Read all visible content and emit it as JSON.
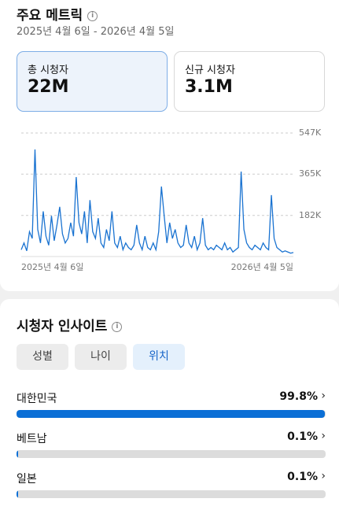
{
  "header": {
    "title": "주요 메트릭",
    "date_range": "2025년 4월 6일 - 2026년 4월 5일"
  },
  "metrics": [
    {
      "label": "총 시청자",
      "value": "22M"
    },
    {
      "label": "신규 시청자",
      "value": "3.1M"
    }
  ],
  "chart_data": {
    "type": "line",
    "categories": [
      "2025년 4월 6일",
      null,
      null,
      null,
      null,
      null,
      null,
      null,
      null,
      null,
      null,
      null,
      null,
      null,
      null,
      null,
      null,
      null,
      null,
      null,
      null,
      null,
      null,
      null,
      null,
      null,
      null,
      null,
      null,
      null,
      null,
      null,
      null,
      null,
      null,
      null,
      null,
      null,
      null,
      null,
      null,
      null,
      null,
      null,
      null,
      null,
      null,
      null,
      null,
      null,
      null,
      null,
      null,
      null,
      null,
      null,
      null,
      null,
      null,
      null,
      null,
      null,
      null,
      null,
      null,
      null,
      null,
      null,
      null,
      null,
      null,
      null,
      null,
      null,
      null,
      null,
      null,
      null,
      null,
      null,
      null,
      null,
      null,
      null,
      null,
      null,
      null,
      null,
      null,
      null,
      null,
      null,
      null,
      null,
      null,
      null,
      null,
      null,
      null,
      "2026년 4월 5일"
    ],
    "series": [
      {
        "color": "#1a73d1",
        "values": [
          30000,
          60000,
          25000,
          110000,
          80000,
          474000,
          120000,
          60000,
          200000,
          90000,
          50000,
          180000,
          70000,
          140000,
          220000,
          100000,
          60000,
          80000,
          150000,
          90000,
          352000,
          150000,
          100000,
          200000,
          60000,
          250000,
          110000,
          80000,
          170000,
          60000,
          40000,
          120000,
          70000,
          200000,
          60000,
          40000,
          90000,
          30000,
          60000,
          40000,
          30000,
          50000,
          140000,
          60000,
          30000,
          90000,
          40000,
          30000,
          60000,
          30000,
          110000,
          310000,
          180000,
          60000,
          150000,
          80000,
          120000,
          60000,
          40000,
          50000,
          140000,
          60000,
          40000,
          90000,
          30000,
          60000,
          170000,
          50000,
          30000,
          40000,
          30000,
          50000,
          40000,
          30000,
          60000,
          30000,
          40000,
          20000,
          30000,
          40000,
          376000,
          120000,
          60000,
          40000,
          30000,
          50000,
          40000,
          30000,
          60000,
          40000,
          30000,
          272000,
          80000,
          40000,
          30000,
          20000,
          25000,
          20000,
          15000,
          18000
        ]
      }
    ],
    "ylim": [
      0,
      547000
    ],
    "yticks": [
      {
        "value": 182000,
        "label": "182K"
      },
      {
        "value": 365000,
        "label": "365K"
      },
      {
        "value": 547000,
        "label": "547K"
      }
    ]
  },
  "insights": {
    "title": "시청자 인사이트",
    "tabs": [
      "성별",
      "나이",
      "위치"
    ],
    "rows": [
      {
        "label": "대한민국",
        "value": 99.8,
        "value_label": "99.8%"
      },
      {
        "label": "베트남",
        "value": 0.1,
        "value_label": "0.1%"
      },
      {
        "label": "일본",
        "value": 0.1,
        "value_label": "0.1%"
      }
    ]
  }
}
